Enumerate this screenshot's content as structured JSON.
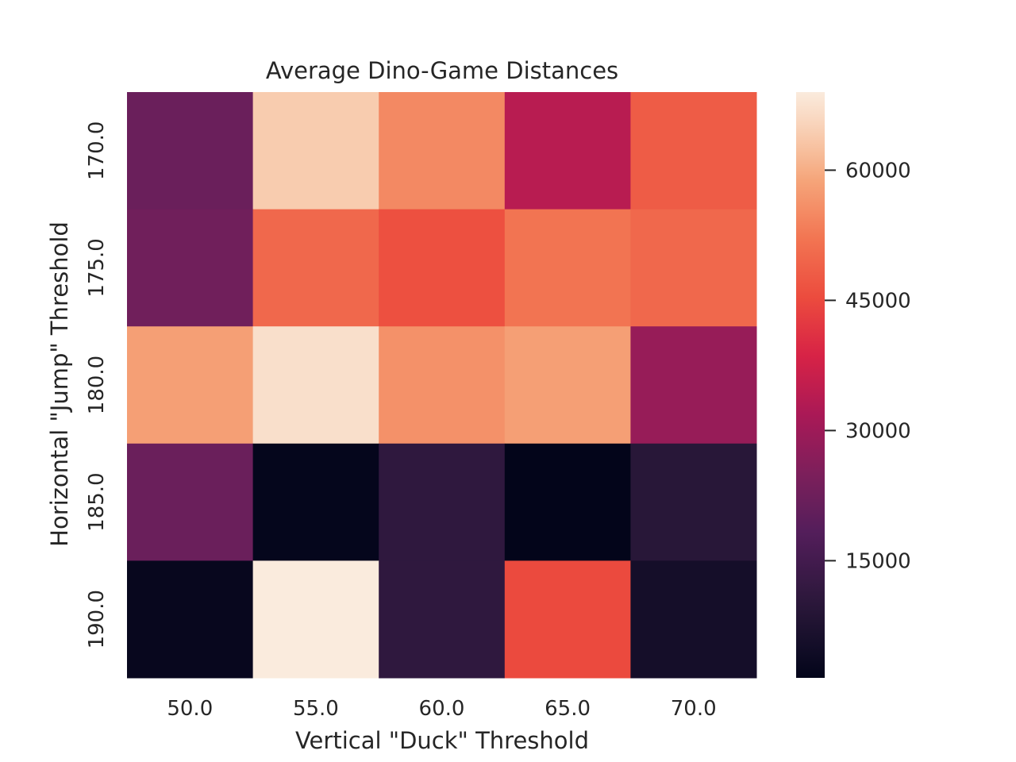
{
  "chart_data": {
    "type": "heatmap",
    "title": "Average Dino-Game Distances",
    "xlabel": "Vertical \"Duck\" Threshold",
    "ylabel": "Horizontal \"Jump\" Threshold",
    "x_categories": [
      "50.0",
      "55.0",
      "60.0",
      "65.0",
      "70.0"
    ],
    "y_categories": [
      "170.0",
      "175.0",
      "180.0",
      "185.0",
      "190.0"
    ],
    "values": [
      [
        22000,
        64000,
        55000,
        34000,
        48000
      ],
      [
        23000,
        50000,
        46000,
        52000,
        50000
      ],
      [
        58000,
        67000,
        56000,
        58000,
        29000
      ],
      [
        22000,
        2000,
        11000,
        1500,
        9500
      ],
      [
        2500,
        69000,
        11000,
        45000,
        5500
      ]
    ],
    "colorbar": {
      "min": 1500,
      "max": 69000,
      "ticks": [
        15000,
        30000,
        45000,
        60000
      ],
      "tick_labels": [
        "15000",
        "30000",
        "45000",
        "60000"
      ],
      "colormap": "rocket"
    },
    "grid": false
  }
}
